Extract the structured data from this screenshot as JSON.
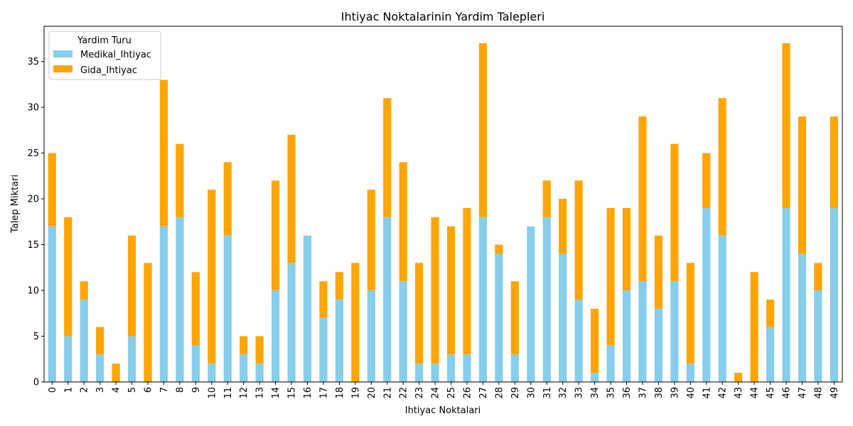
{
  "chart_data": {
    "type": "bar",
    "stacked": true,
    "title": "Ihtiyac Noktalarinin Yardim Talepleri",
    "xlabel": "Ihtiyac Noktalari",
    "ylabel": "Talep Miktari",
    "ylim": [
      0,
      38.85
    ],
    "yticks": [
      0,
      5,
      10,
      15,
      20,
      25,
      30,
      35
    ],
    "grid": false,
    "legend": {
      "title": "Yardim Turu",
      "placement": "top-left"
    },
    "categories": [
      "0",
      "1",
      "2",
      "3",
      "4",
      "5",
      "6",
      "7",
      "8",
      "9",
      "10",
      "11",
      "12",
      "13",
      "14",
      "15",
      "16",
      "17",
      "18",
      "19",
      "20",
      "21",
      "22",
      "23",
      "24",
      "25",
      "26",
      "27",
      "28",
      "29",
      "30",
      "31",
      "32",
      "33",
      "34",
      "35",
      "36",
      "37",
      "38",
      "39",
      "40",
      "41",
      "42",
      "43",
      "44",
      "45",
      "46",
      "47",
      "48",
      "49"
    ],
    "series": [
      {
        "name": "Medikal_Ihtiyac",
        "color": "#87ceeb",
        "values": [
          17,
          5,
          9,
          3,
          0,
          5,
          0,
          17,
          18,
          4,
          2,
          16,
          3,
          2,
          10,
          13,
          16,
          7,
          9,
          0,
          10,
          18,
          11,
          2,
          2,
          3,
          3,
          18,
          14,
          3,
          17,
          18,
          14,
          9,
          1,
          4,
          10,
          11,
          8,
          11,
          2,
          19,
          16,
          0,
          0,
          6,
          19,
          14,
          10,
          19
        ]
      },
      {
        "name": "Gida_Ihtiyac",
        "color": "#ffa500",
        "values": [
          8,
          13,
          2,
          3,
          2,
          11,
          13,
          16,
          8,
          8,
          19,
          8,
          2,
          3,
          12,
          14,
          0,
          4,
          3,
          13,
          11,
          13,
          13,
          11,
          16,
          14,
          16,
          19,
          1,
          8,
          0,
          4,
          6,
          13,
          7,
          15,
          9,
          18,
          8,
          15,
          11,
          6,
          15,
          1,
          12,
          3,
          18,
          15,
          3,
          10
        ]
      }
    ]
  }
}
